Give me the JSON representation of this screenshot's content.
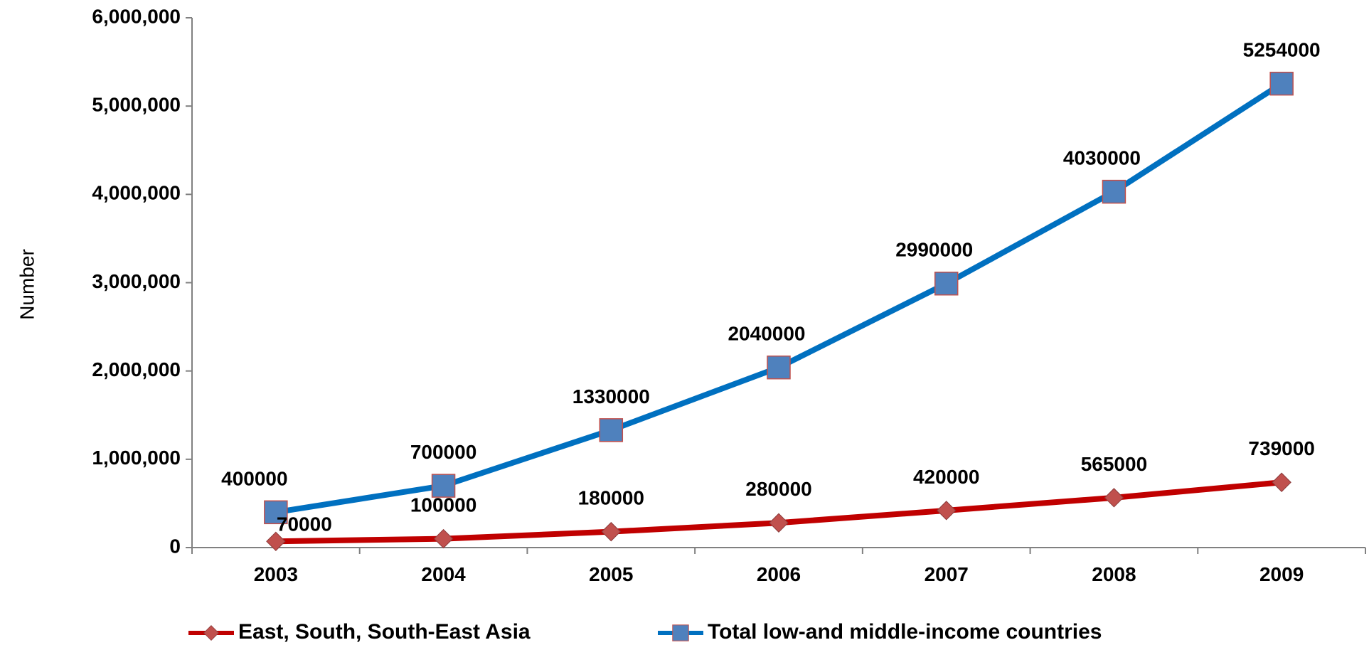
{
  "chart_data": {
    "type": "line",
    "title": "",
    "xlabel": "",
    "ylabel": "Number",
    "ylim": [
      0,
      6000000
    ],
    "yticks": [
      0,
      1000000,
      2000000,
      3000000,
      4000000,
      5000000,
      6000000
    ],
    "ytick_labels": [
      "0",
      "1,000,000",
      "2,000,000",
      "3,000,000",
      "4,000,000",
      "5,000,000",
      "6,000,000"
    ],
    "categories": [
      "2003",
      "2004",
      "2005",
      "2006",
      "2007",
      "2008",
      "2009"
    ],
    "grid": false,
    "legend_position": "bottom",
    "series": [
      {
        "name": "East, South, South-East Asia",
        "values": [
          70000,
          100000,
          180000,
          280000,
          420000,
          565000,
          739000
        ],
        "data_labels": [
          "70000",
          "100000",
          "180000",
          "280000",
          "420000",
          "565000",
          "739000"
        ],
        "line_color": "#c00000",
        "marker": "diamond",
        "marker_color": "#c0504d"
      },
      {
        "name": "Total low-and middle-income countries",
        "values": [
          400000,
          700000,
          1330000,
          2040000,
          2990000,
          4030000,
          5254000
        ],
        "data_labels": [
          "400000",
          "700000",
          "1330000",
          "2040000",
          "2990000",
          "4030000",
          "5254000"
        ],
        "line_color": "#0070c0",
        "marker": "square",
        "marker_color": "#4f81bd"
      }
    ]
  }
}
